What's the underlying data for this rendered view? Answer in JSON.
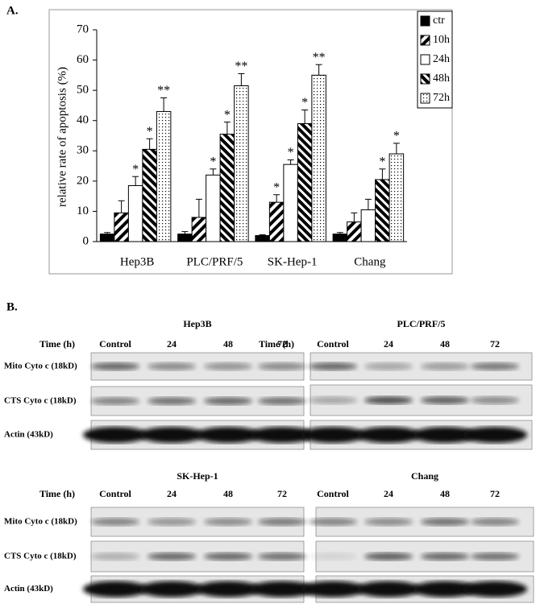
{
  "panel_labels": [
    "A.",
    "B."
  ],
  "chart_data": {
    "type": "bar",
    "y_label": "relative rate of apoptosis (%)",
    "categories": [
      "Hep3B",
      "PLC/PRF/5",
      "SK-Hep-1",
      "Chang"
    ],
    "ylim": [
      0,
      70
    ],
    "yticks": [
      0,
      10,
      20,
      30,
      40,
      50,
      60,
      70
    ],
    "legend": "top-right",
    "series": [
      {
        "name": "ctr",
        "color": "#000000",
        "pattern": "solid",
        "values": [
          2.5,
          2.5,
          2,
          2.5
        ],
        "errors": [
          0.5,
          0.8,
          0.3,
          0.5
        ]
      },
      {
        "name": "10h",
        "color": "#000000",
        "pattern": "diagonal-back",
        "values": [
          9.5,
          8,
          13,
          6.5
        ],
        "errors": [
          4,
          6,
          2.5,
          3
        ],
        "annotations": [
          null,
          null,
          "*",
          null
        ]
      },
      {
        "name": "24h",
        "color": "#000000",
        "pattern": "white",
        "values": [
          18.5,
          22,
          25.5,
          10.5
        ],
        "errors": [
          3,
          2,
          1.5,
          3.5
        ],
        "annotations": [
          "*",
          "*",
          "*",
          null
        ]
      },
      {
        "name": "48h",
        "color": "#000000",
        "pattern": "diagonal-forward",
        "values": [
          30.5,
          35.5,
          39,
          20.5
        ],
        "errors": [
          3.5,
          4,
          4.5,
          3.5
        ],
        "annotations": [
          "*",
          "*",
          "*",
          "*"
        ]
      },
      {
        "name": "72h",
        "color": "#000000",
        "pattern": "dots",
        "values": [
          43,
          51.5,
          55,
          29
        ],
        "errors": [
          4.5,
          4,
          3.5,
          3.5
        ],
        "annotations": [
          "**",
          "**",
          "**",
          "*"
        ]
      }
    ]
  },
  "blots": [
    {
      "cell_line": "Hep3B",
      "time_label": "Time (h)",
      "lanes": [
        "Control",
        "24",
        "48",
        "72"
      ],
      "rows": [
        "Mito Cyto c (18kD)",
        "CTS Cyto c (18kD)",
        "Actin (43kD)"
      ]
    },
    {
      "cell_line": "PLC/PRF/5",
      "time_label": "Time (h)",
      "lanes": [
        "Control",
        "24",
        "48",
        "72"
      ]
    },
    {
      "cell_line": "SK-Hep-1",
      "time_label": "Time (h)",
      "lanes": [
        "Control",
        "24",
        "48",
        "72"
      ],
      "rows": [
        "Mito Cyto c (18kD)",
        "CTS Cyto c (18kD)",
        "Actin (43kD)"
      ]
    },
    {
      "cell_line": "Chang",
      "lanes": [
        "Control",
        "24",
        "48",
        "72"
      ]
    }
  ]
}
